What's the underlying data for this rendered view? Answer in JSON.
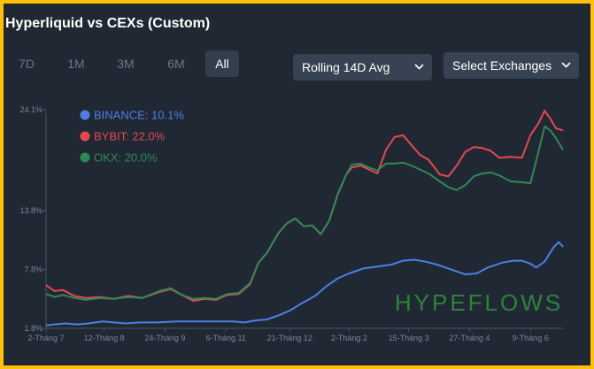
{
  "header": {
    "title": "Hyperliquid vs CEXs (Custom)",
    "ranges": [
      "7D",
      "1M",
      "3M",
      "6M",
      "All"
    ],
    "active_range": "All",
    "metric_select": "Rolling 14D Avg",
    "exchange_select": "Select Exchanges"
  },
  "watermark": "HYPEFLOWS",
  "colors": {
    "background": "#202834",
    "frame": "#ffc107",
    "binance": "#4c7fe6",
    "bybit": "#e8474d",
    "okx": "#2e8a55",
    "watermark": "#2f8c3a"
  },
  "chart_data": {
    "type": "line",
    "title": "Hyperliquid vs CEXs (Custom)",
    "xlabel": "",
    "ylabel": "",
    "y_unit": "%",
    "ylim": [
      1.8,
      24.1
    ],
    "y_ticks": [
      1.8,
      7.8,
      13.8,
      24.1
    ],
    "y_tick_labels": [
      "1.8%",
      "7.8%",
      "13.8%",
      "24.1%"
    ],
    "x_range": [
      0,
      365
    ],
    "x_ticks": [
      {
        "x": 0,
        "label": "2-Tháng 7"
      },
      {
        "x": 41,
        "label": "12-Tháng 8"
      },
      {
        "x": 84,
        "label": "24-Tháng 9"
      },
      {
        "x": 127,
        "label": "6-Tháng 11"
      },
      {
        "x": 172,
        "label": "21-Tháng 12"
      },
      {
        "x": 214,
        "label": "2-Tháng 2"
      },
      {
        "x": 256,
        "label": "15-Tháng 3"
      },
      {
        "x": 299,
        "label": "27-Tháng 4"
      },
      {
        "x": 342,
        "label": "9-Tháng 6"
      }
    ],
    "legend_position": "top-left",
    "series": [
      {
        "name": "BINANCE",
        "legend_label": "BINANCE: 10.1%",
        "color": "#4c7fe6",
        "x": [
          0,
          6,
          14,
          22,
          30,
          40,
          48,
          56,
          66,
          78,
          92,
          106,
          120,
          132,
          140,
          148,
          156,
          164,
          172,
          180,
          190,
          198,
          206,
          214,
          224,
          234,
          244,
          252,
          260,
          268,
          276,
          286,
          296,
          304,
          312,
          322,
          330,
          336,
          342,
          346,
          352,
          358,
          362,
          365
        ],
        "y": [
          2.1,
          2.2,
          2.3,
          2.2,
          2.3,
          2.5,
          2.4,
          2.3,
          2.4,
          2.4,
          2.5,
          2.5,
          2.5,
          2.5,
          2.4,
          2.6,
          2.7,
          3.1,
          3.6,
          4.3,
          5.1,
          6.1,
          6.9,
          7.4,
          7.9,
          8.1,
          8.3,
          8.7,
          8.8,
          8.6,
          8.3,
          7.8,
          7.3,
          7.4,
          8.0,
          8.5,
          8.7,
          8.7,
          8.4,
          8.0,
          8.6,
          10.0,
          10.6,
          10.1
        ]
      },
      {
        "name": "BYBIT",
        "legend_label": "BYBIT: 22.0%",
        "color": "#e8474d",
        "x": [
          0,
          6,
          12,
          20,
          28,
          38,
          48,
          58,
          68,
          80,
          88,
          96,
          104,
          112,
          120,
          128,
          136,
          144,
          150,
          156,
          160,
          164,
          170,
          176,
          182,
          188,
          194,
          200,
          206,
          212,
          216,
          222,
          228,
          234,
          240,
          246,
          252,
          258,
          264,
          270,
          278,
          284,
          290,
          296,
          302,
          308,
          314,
          320,
          328,
          336,
          342,
          348,
          352,
          356,
          360,
          365
        ],
        "y": [
          6.2,
          5.6,
          5.7,
          5.1,
          4.9,
          5.0,
          4.8,
          5.1,
          4.9,
          5.5,
          5.8,
          5.2,
          4.6,
          4.8,
          4.7,
          5.2,
          5.3,
          6.3,
          8.5,
          9.5,
          10.5,
          11.5,
          12.5,
          13.0,
          12.2,
          12.3,
          11.4,
          12.8,
          15.5,
          17.5,
          18.2,
          18.4,
          18.0,
          17.6,
          20.0,
          21.3,
          21.5,
          20.5,
          19.5,
          19.0,
          17.5,
          17.3,
          18.4,
          19.8,
          20.3,
          20.2,
          19.9,
          19.2,
          19.3,
          19.2,
          21.5,
          22.8,
          24.0,
          23.2,
          22.2,
          22.0
        ]
      },
      {
        "name": "OKX",
        "legend_label": "OKX: 20.0%",
        "color": "#2e8a55",
        "x": [
          0,
          6,
          12,
          20,
          28,
          38,
          48,
          58,
          68,
          80,
          88,
          96,
          104,
          112,
          120,
          128,
          136,
          144,
          150,
          156,
          160,
          164,
          170,
          176,
          182,
          188,
          194,
          200,
          206,
          212,
          216,
          222,
          228,
          234,
          240,
          246,
          252,
          258,
          264,
          270,
          278,
          284,
          290,
          296,
          302,
          308,
          314,
          320,
          328,
          336,
          342,
          348,
          352,
          356,
          360,
          365
        ],
        "y": [
          5.3,
          5.0,
          5.2,
          4.9,
          4.7,
          4.9,
          4.8,
          5.0,
          4.9,
          5.6,
          5.9,
          5.2,
          4.8,
          4.9,
          4.8,
          5.3,
          5.4,
          6.4,
          8.5,
          9.5,
          10.5,
          11.5,
          12.5,
          13.0,
          12.2,
          12.3,
          11.4,
          12.8,
          15.5,
          17.5,
          18.5,
          18.6,
          18.2,
          17.9,
          18.6,
          18.6,
          18.7,
          18.4,
          18.0,
          17.6,
          16.8,
          16.2,
          15.9,
          16.4,
          17.3,
          17.6,
          17.7,
          17.4,
          16.8,
          16.7,
          16.6,
          20.0,
          22.4,
          22.0,
          21.2,
          20.0
        ]
      }
    ]
  }
}
